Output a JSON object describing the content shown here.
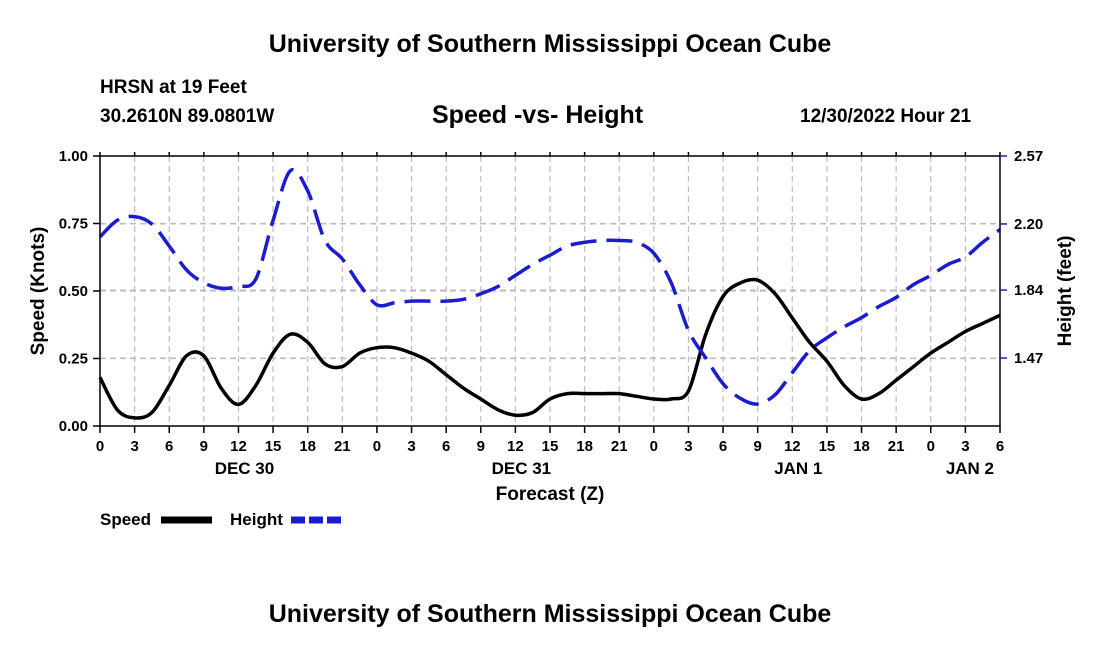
{
  "header": {
    "title": "University of Southern Mississippi Ocean Cube",
    "station": "HRSN at 19 Feet",
    "coords": "30.2610N  89.0801W",
    "datetime": "12/30/2022 Hour 21"
  },
  "footer": {
    "title": "University of Southern Mississippi Ocean Cube"
  },
  "legend": {
    "speed_label": "Speed",
    "height_label": "Height"
  },
  "chart_data": {
    "type": "line",
    "title": "Speed -vs- Height",
    "xlabel": "Forecast (Z)",
    "ylabel": "Speed (Knots)",
    "y2label": "Height (feet)",
    "xlim": [
      0,
      78
    ],
    "ylim": [
      0,
      1.0
    ],
    "y2lim": [
      1.1,
      2.57
    ],
    "grid": true,
    "x_ticks": [
      0,
      3,
      6,
      9,
      12,
      15,
      18,
      21,
      24,
      27,
      30,
      33,
      36,
      39,
      42,
      45,
      48,
      51,
      54,
      57,
      60,
      63,
      66,
      69,
      72,
      75,
      78
    ],
    "x_tick_labels": [
      "0",
      "3",
      "6",
      "9",
      "12",
      "15",
      "18",
      "21",
      "0",
      "3",
      "6",
      "9",
      "12",
      "15",
      "18",
      "21",
      "0",
      "3",
      "6",
      "9",
      "12",
      "15",
      "18",
      "21",
      "0",
      "3",
      "6"
    ],
    "day_labels": [
      {
        "label": "DEC 30",
        "x": 12
      },
      {
        "label": "DEC 31",
        "x": 36
      },
      {
        "label": "JAN 1",
        "x": 60
      },
      {
        "label": "JAN 2",
        "x": 78
      }
    ],
    "y_ticks": [
      0.0,
      0.25,
      0.5,
      0.75,
      1.0
    ],
    "y_tick_labels": [
      "0.00",
      "0.25",
      "0.50",
      "0.75",
      "1.00"
    ],
    "y2_ticks": [
      1.47,
      1.84,
      2.2,
      2.57
    ],
    "y2_tick_labels": [
      "1.47",
      "1.84",
      "2.20",
      "2.57"
    ],
    "series": [
      {
        "name": "Speed",
        "axis": "left",
        "color": "#000000",
        "dash": "solid",
        "x": [
          0,
          1.5,
          3,
          4.5,
          6,
          7.5,
          9,
          10.5,
          12,
          13.5,
          15,
          16.5,
          18,
          19.5,
          21,
          22.5,
          24,
          25.5,
          27,
          28.5,
          30,
          31.5,
          33,
          34.5,
          36,
          37.5,
          39,
          40.5,
          42,
          43.5,
          45,
          46.5,
          48,
          49.5,
          51,
          52.5,
          54,
          55.5,
          57,
          58.5,
          60,
          61.5,
          63,
          64.5,
          66,
          67.5,
          69,
          70.5,
          72,
          73.5,
          75,
          76.5,
          78
        ],
        "values": [
          0.18,
          0.06,
          0.03,
          0.05,
          0.15,
          0.26,
          0.26,
          0.14,
          0.08,
          0.15,
          0.27,
          0.34,
          0.31,
          0.23,
          0.22,
          0.27,
          0.29,
          0.29,
          0.27,
          0.24,
          0.19,
          0.14,
          0.1,
          0.06,
          0.04,
          0.05,
          0.1,
          0.12,
          0.12,
          0.12,
          0.12,
          0.11,
          0.1,
          0.1,
          0.13,
          0.34,
          0.48,
          0.53,
          0.54,
          0.49,
          0.4,
          0.31,
          0.24,
          0.15,
          0.1,
          0.12,
          0.17,
          0.22,
          0.27,
          0.31,
          0.35,
          0.38,
          0.41
        ]
      },
      {
        "name": "Height",
        "axis": "right",
        "color": "#1c1ccf",
        "dash": "dashed",
        "x": [
          0,
          1.5,
          3,
          4.5,
          6,
          7.5,
          9,
          10.5,
          12,
          13.5,
          15,
          16.5,
          18,
          19.5,
          21,
          22.5,
          24,
          25.5,
          27,
          28.5,
          30,
          31.5,
          33,
          34.5,
          36,
          37.5,
          39,
          40.5,
          42,
          43.5,
          45,
          46.5,
          48,
          49.5,
          51,
          52.5,
          54,
          55.5,
          57,
          58.5,
          60,
          61.5,
          63,
          64.5,
          66,
          67.5,
          69,
          70.5,
          72,
          73.5,
          75,
          76.5,
          78
        ],
        "values": [
          2.13,
          2.22,
          2.24,
          2.2,
          2.08,
          1.95,
          1.88,
          1.85,
          1.86,
          1.9,
          2.22,
          2.49,
          2.38,
          2.11,
          2.01,
          1.87,
          1.76,
          1.77,
          1.78,
          1.78,
          1.78,
          1.79,
          1.82,
          1.86,
          1.92,
          1.98,
          2.03,
          2.08,
          2.1,
          2.11,
          2.11,
          2.1,
          2.04,
          1.88,
          1.62,
          1.47,
          1.33,
          1.25,
          1.22,
          1.27,
          1.39,
          1.51,
          1.58,
          1.64,
          1.69,
          1.75,
          1.8,
          1.87,
          1.92,
          1.98,
          2.02,
          2.1,
          2.17
        ]
      }
    ]
  }
}
